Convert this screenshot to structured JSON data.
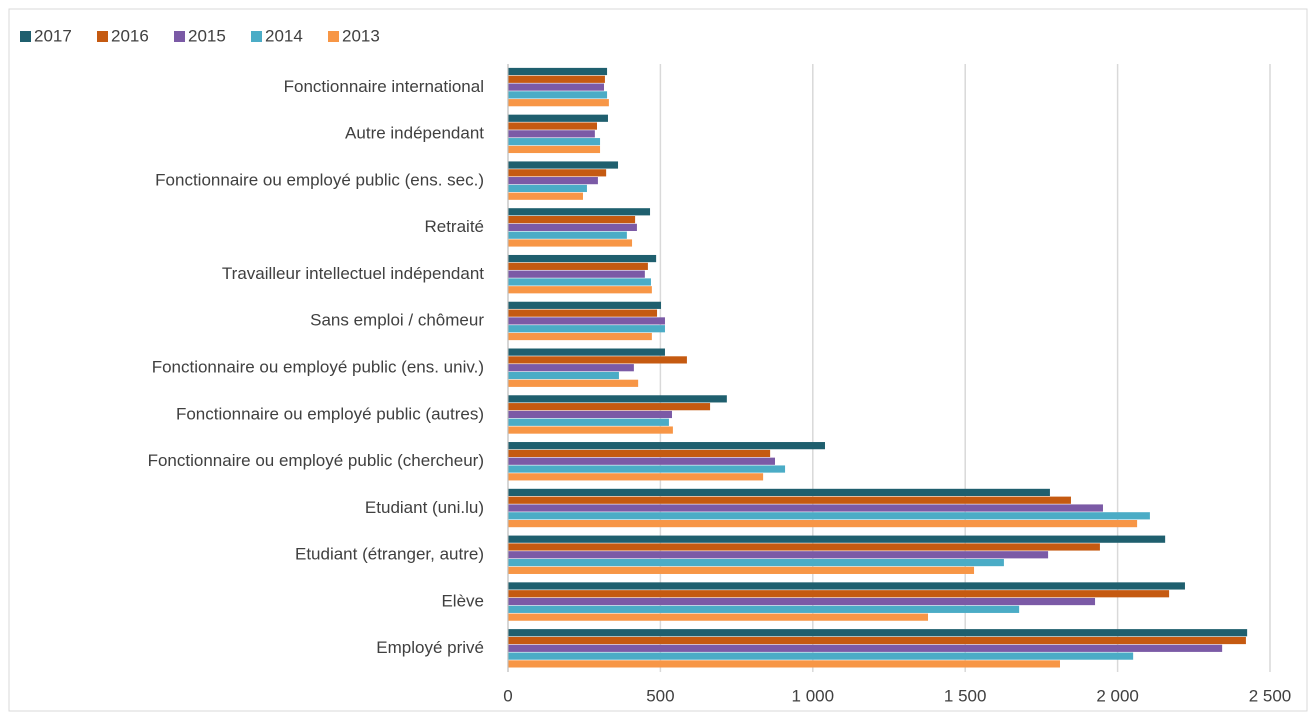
{
  "chart_data": {
    "type": "hbar",
    "categories": [
      "Fonctionnaire international",
      "Autre indépendant",
      "Fonctionnaire ou employé public (ens. sec.)",
      "Retraité",
      "Travailleur intellectuel indépendant",
      "Sans emploi / chômeur",
      "Fonctionnaire ou employé public (ens. univ.)",
      "Fonctionnaire ou employé public (autres)",
      "Fonctionnaire ou employé public (chercheur)",
      "Etudiant (uni.lu)",
      "Etudiant (étranger, autre)",
      "Elève",
      "Employé privé"
    ],
    "series": [
      {
        "name": "2017",
        "color": "#1f5f6e",
        "values": [
          325,
          328,
          361,
          466,
          486,
          502,
          515,
          718,
          1040,
          1778,
          2156,
          2221,
          2425
        ]
      },
      {
        "name": "2016",
        "color": "#c55a11",
        "values": [
          318,
          292,
          322,
          417,
          459,
          489,
          587,
          663,
          860,
          1847,
          1942,
          2169,
          2421
        ]
      },
      {
        "name": "2015",
        "color": "#7b5aa6",
        "values": [
          315,
          285,
          295,
          423,
          449,
          515,
          413,
          538,
          876,
          1952,
          1772,
          1926,
          2343
        ]
      },
      {
        "name": "2014",
        "color": "#4bacc6",
        "values": [
          325,
          302,
          259,
          390,
          469,
          515,
          364,
          528,
          909,
          2106,
          1627,
          1677,
          2051
        ]
      },
      {
        "name": "2013",
        "color": "#f79646",
        "values": [
          331,
          302,
          246,
          407,
          472,
          472,
          427,
          541,
          837,
          2064,
          1529,
          1378,
          1811
        ]
      }
    ],
    "xlim": [
      0,
      2500
    ],
    "xticks": [
      0,
      500,
      {
        "value": 1000,
        "label": "1 000"
      },
      {
        "value": 1500,
        "label": "1 500"
      },
      {
        "value": 2000,
        "label": "2 000"
      },
      {
        "value": 2500,
        "label": "2 500"
      }
    ],
    "grid": true,
    "legend": "top-left"
  }
}
